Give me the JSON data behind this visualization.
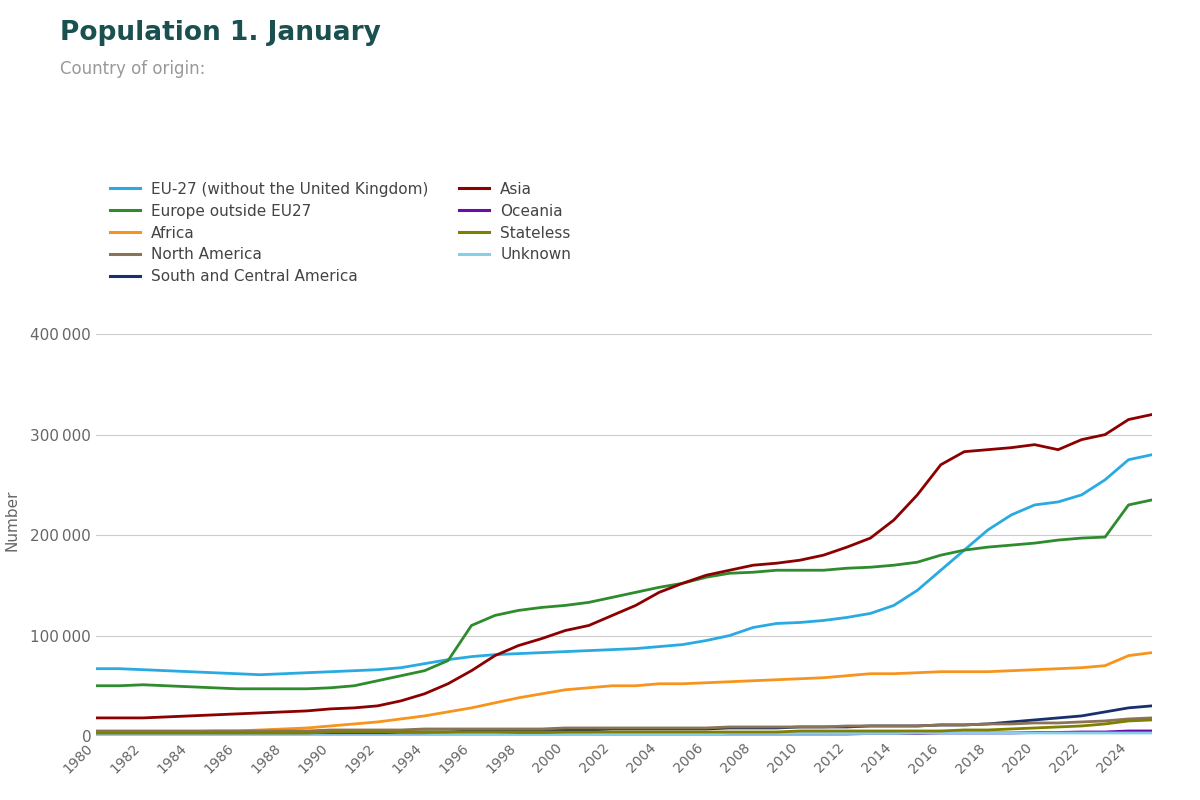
{
  "title": "Population 1. January",
  "subtitle": "Country of origin:",
  "ylabel": "Number",
  "title_color": "#1a5050",
  "subtitle_color": "#999999",
  "background_color": "#ffffff",
  "years": [
    1980,
    1981,
    1982,
    1983,
    1984,
    1985,
    1986,
    1987,
    1988,
    1989,
    1990,
    1991,
    1992,
    1993,
    1994,
    1995,
    1996,
    1997,
    1998,
    1999,
    2000,
    2001,
    2002,
    2003,
    2004,
    2005,
    2006,
    2007,
    2008,
    2009,
    2010,
    2011,
    2012,
    2013,
    2014,
    2015,
    2016,
    2017,
    2018,
    2019,
    2020,
    2021,
    2022,
    2023,
    2024,
    2025
  ],
  "series": [
    {
      "label": "EU-27 (without the United Kingdom)",
      "color": "#29aae2",
      "data": [
        67000,
        67000,
        66000,
        65000,
        64000,
        63000,
        62000,
        61000,
        62000,
        63000,
        64000,
        65000,
        66000,
        68000,
        72000,
        76000,
        79000,
        81000,
        82000,
        83000,
        84000,
        85000,
        86000,
        87000,
        89000,
        91000,
        95000,
        100000,
        108000,
        112000,
        113000,
        115000,
        118000,
        122000,
        130000,
        145000,
        165000,
        185000,
        205000,
        220000,
        230000,
        233000,
        240000,
        255000,
        275000,
        280000
      ]
    },
    {
      "label": "Africa",
      "color": "#f7941d",
      "data": [
        3000,
        3000,
        3000,
        4000,
        4000,
        5000,
        5000,
        6000,
        7000,
        8000,
        10000,
        12000,
        14000,
        17000,
        20000,
        24000,
        28000,
        33000,
        38000,
        42000,
        46000,
        48000,
        50000,
        50000,
        52000,
        52000,
        53000,
        54000,
        55000,
        56000,
        57000,
        58000,
        60000,
        62000,
        62000,
        63000,
        64000,
        64000,
        64000,
        65000,
        66000,
        67000,
        68000,
        70000,
        80000,
        83000
      ]
    },
    {
      "label": "South and Central America",
      "color": "#1a2f6e",
      "data": [
        2000,
        2000,
        2000,
        2000,
        2000,
        2000,
        2000,
        2000,
        2000,
        2000,
        3000,
        3000,
        3000,
        4000,
        4000,
        4000,
        5000,
        5000,
        5000,
        6000,
        6000,
        6000,
        7000,
        7000,
        7000,
        7000,
        7000,
        8000,
        8000,
        8000,
        9000,
        9000,
        9000,
        10000,
        10000,
        10000,
        11000,
        11000,
        12000,
        14000,
        16000,
        18000,
        20000,
        24000,
        28000,
        30000
      ]
    },
    {
      "label": "Oceania",
      "color": "#6a0dad",
      "data": [
        1000,
        1000,
        1000,
        1000,
        1000,
        1000,
        1000,
        1000,
        1000,
        1000,
        1000,
        1000,
        1000,
        1000,
        1000,
        1000,
        1000,
        1000,
        1500,
        1500,
        2000,
        2000,
        2000,
        2000,
        2000,
        2000,
        2000,
        2000,
        2000,
        2000,
        2000,
        2000,
        2000,
        2500,
        2500,
        2500,
        3000,
        3000,
        3000,
        3000,
        3500,
        3500,
        4000,
        4000,
        5000,
        5000
      ]
    },
    {
      "label": "Unknown",
      "color": "#87ceeb",
      "data": [
        500,
        500,
        500,
        500,
        500,
        500,
        500,
        500,
        500,
        500,
        500,
        500,
        500,
        500,
        500,
        1000,
        1000,
        1000,
        1000,
        1000,
        1500,
        1500,
        2000,
        2000,
        2000,
        2000,
        2000,
        2500,
        2500,
        2500,
        2500,
        2500,
        2500,
        2500,
        2500,
        3000,
        3000,
        3000,
        3000,
        3000,
        3000,
        3000,
        3000,
        3000,
        3000,
        3000
      ]
    },
    {
      "label": "Europe outside EU27",
      "color": "#2e8b2e",
      "data": [
        50000,
        50000,
        51000,
        50000,
        49000,
        48000,
        47000,
        47000,
        47000,
        47000,
        48000,
        50000,
        55000,
        60000,
        65000,
        75000,
        110000,
        120000,
        125000,
        128000,
        130000,
        133000,
        138000,
        143000,
        148000,
        152000,
        158000,
        162000,
        163000,
        165000,
        165000,
        165000,
        167000,
        168000,
        170000,
        173000,
        180000,
        185000,
        188000,
        190000,
        192000,
        195000,
        197000,
        198000,
        230000,
        235000
      ]
    },
    {
      "label": "North America",
      "color": "#8b7355",
      "data": [
        5000,
        5000,
        5000,
        5000,
        5000,
        5000,
        5000,
        5000,
        5000,
        5000,
        6000,
        6000,
        6000,
        6000,
        7000,
        7000,
        7000,
        7000,
        7000,
        7000,
        8000,
        8000,
        8000,
        8000,
        8000,
        8000,
        8000,
        9000,
        9000,
        9000,
        9000,
        9000,
        10000,
        10000,
        10000,
        10000,
        11000,
        11000,
        12000,
        12000,
        13000,
        13000,
        14000,
        15000,
        17000,
        18000
      ]
    },
    {
      "label": "Asia",
      "color": "#8b0000",
      "data": [
        18000,
        18000,
        18000,
        19000,
        20000,
        21000,
        22000,
        23000,
        24000,
        25000,
        27000,
        28000,
        30000,
        35000,
        42000,
        52000,
        65000,
        80000,
        90000,
        97000,
        105000,
        110000,
        120000,
        130000,
        143000,
        152000,
        160000,
        165000,
        170000,
        172000,
        175000,
        180000,
        188000,
        197000,
        215000,
        240000,
        270000,
        283000,
        285000,
        287000,
        290000,
        285000,
        295000,
        300000,
        315000,
        320000
      ]
    },
    {
      "label": "Stateless",
      "color": "#808000",
      "data": [
        3000,
        3000,
        3000,
        3000,
        3000,
        3000,
        3000,
        3000,
        3000,
        3000,
        4000,
        4000,
        4000,
        4000,
        4000,
        4000,
        4000,
        4000,
        4000,
        4000,
        4000,
        4000,
        4000,
        4000,
        4000,
        4000,
        4000,
        4000,
        4000,
        4000,
        5000,
        5000,
        5000,
        5000,
        5000,
        5000,
        5000,
        6000,
        6000,
        7000,
        8000,
        9000,
        10000,
        12000,
        15000,
        16000
      ]
    }
  ],
  "legend_order": [
    "EU-27 (without the United Kingdom)",
    "Europe outside EU27",
    "Africa",
    "North America",
    "South and Central America",
    "Asia",
    "Oceania",
    "Stateless",
    "Unknown"
  ],
  "ylim": [
    0,
    430000
  ],
  "yticks": [
    0,
    100000,
    200000,
    300000,
    400000
  ],
  "ytick_labels": [
    "0",
    "100 000",
    "200 000",
    "300 000",
    "400 000"
  ],
  "xtick_years": [
    1980,
    1982,
    1984,
    1986,
    1988,
    1990,
    1992,
    1994,
    1996,
    1998,
    2000,
    2002,
    2004,
    2006,
    2008,
    2010,
    2012,
    2014,
    2016,
    2018,
    2020,
    2022,
    2024
  ]
}
